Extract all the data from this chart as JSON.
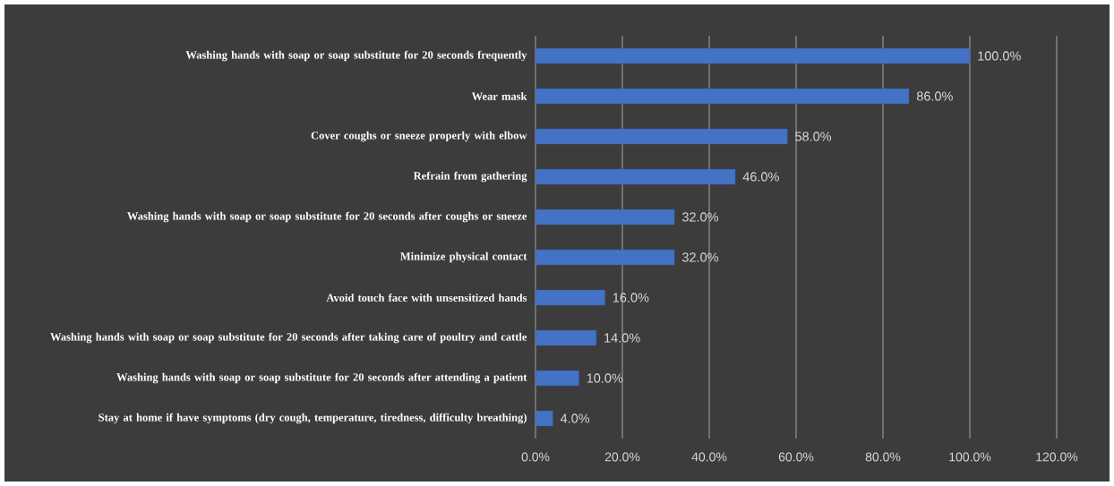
{
  "chart_data": {
    "type": "bar",
    "orientation": "horizontal",
    "categories": [
      "Washing hands with soap or soap substitute for 20 seconds frequently",
      "Wear mask",
      "Cover coughs or sneeze properly with elbow",
      "Refrain from gathering",
      "Washing hands with soap or soap substitute for 20 seconds after coughs or sneeze",
      "Minimize physical contact",
      "Avoid touch face with unsensitized hands",
      "Washing hands with soap or soap substitute for 20 seconds after taking care of poultry and cattle",
      "Washing hands with soap or soap substitute for 20 seconds after attending a patient",
      "Stay at home if have symptoms (dry cough, temperature, tiredness, difficulty breathing)"
    ],
    "values": [
      100,
      86,
      58,
      46,
      32,
      32,
      16,
      14,
      10,
      4
    ],
    "value_labels": [
      "100.0%",
      "86.0%",
      "58.0%",
      "46.0%",
      "32.0%",
      "32.0%",
      "16.0%",
      "14.0%",
      "10.0%",
      "4.0%"
    ],
    "color": "#4472c4",
    "xlim": [
      0,
      120
    ],
    "xticks": [
      {
        "value": 0,
        "label": "0.0%"
      },
      {
        "value": 20,
        "label": "20.0%"
      },
      {
        "value": 40,
        "label": "40.0%"
      },
      {
        "value": 60,
        "label": "60.0%"
      },
      {
        "value": 80,
        "label": "80.0%"
      },
      {
        "value": 100,
        "label": "100.0%"
      },
      {
        "value": 120,
        "label": "120.0%"
      }
    ],
    "grid": "x"
  }
}
